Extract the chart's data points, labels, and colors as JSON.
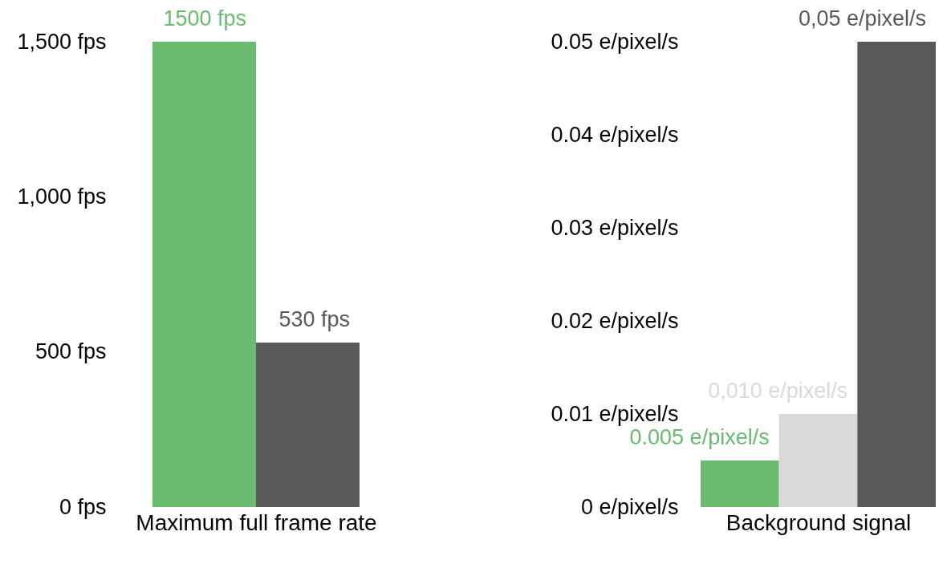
{
  "chart_data": [
    {
      "type": "bar",
      "xlabel": "Maximum full frame rate",
      "categories": [
        null,
        null
      ],
      "values": [
        1500,
        530
      ],
      "colors": [
        "#6aba6f",
        "#595959"
      ],
      "value_labels": [
        "1500 fps",
        "530 fps"
      ],
      "ylim": [
        0,
        1500
      ],
      "yticks": [
        {
          "value": 0,
          "label": "0 fps"
        },
        {
          "value": 500,
          "label": "500 fps"
        },
        {
          "value": 1000,
          "label": "1,000 fps"
        },
        {
          "value": 1500,
          "label": "1,500 fps"
        }
      ],
      "grid": false,
      "legend": false
    },
    {
      "type": "bar",
      "xlabel": "Background signal",
      "categories": [
        null,
        null,
        null
      ],
      "values": [
        0.005,
        0.01,
        0.05
      ],
      "colors": [
        "#6aba6f",
        "#d9d9d9",
        "#595959"
      ],
      "value_labels": [
        "0.005 e/pixel/s",
        "0,010 e/pixel/s",
        "0,05 e/pixel/s"
      ],
      "ylim": [
        0,
        0.05
      ],
      "yticks": [
        {
          "value": 0,
          "label": "0 e/pixel/s"
        },
        {
          "value": 0.01,
          "label": "0.01 e/pixel/s"
        },
        {
          "value": 0.02,
          "label": "0.02 e/pixel/s"
        },
        {
          "value": 0.03,
          "label": "0.03 e/pixel/s"
        },
        {
          "value": 0.04,
          "label": "0.04 e/pixel/s"
        },
        {
          "value": 0.05,
          "label": "0.05 e/pixel/s"
        }
      ],
      "grid": false,
      "legend": false
    }
  ]
}
